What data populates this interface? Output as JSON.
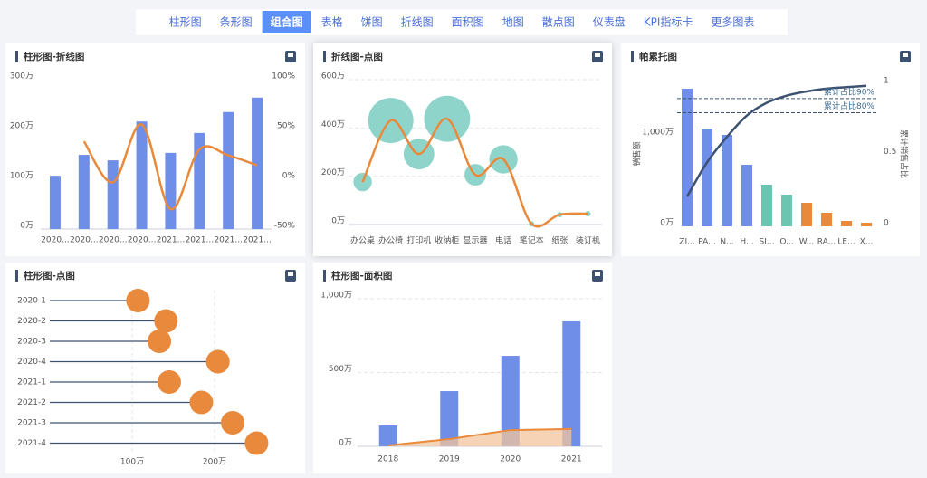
{
  "tabs": [
    {
      "label": "柱形图",
      "active": false
    },
    {
      "label": "条形图",
      "active": false
    },
    {
      "label": "组合图",
      "active": true
    },
    {
      "label": "表格",
      "active": false
    },
    {
      "label": "饼图",
      "active": false
    },
    {
      "label": "折线图",
      "active": false
    },
    {
      "label": "面积图",
      "active": false
    },
    {
      "label": "地图",
      "active": false
    },
    {
      "label": "散点图",
      "active": false
    },
    {
      "label": "仪表盘",
      "active": false
    },
    {
      "label": "KPI指标卡",
      "active": false
    },
    {
      "label": "更多图表",
      "active": false
    }
  ],
  "chart_data": [
    {
      "type": "bar_line",
      "title": "柱形图-折线图",
      "categories": [
        "2020...",
        "2020...",
        "2020...",
        "2020...",
        "2021...",
        "2021...",
        "2021...",
        "2021..."
      ],
      "series": [
        {
          "type": "bar",
          "color": "#6f8ee8",
          "values": [
            107,
            149,
            138,
            216,
            153,
            193,
            235,
            264
          ]
        },
        {
          "type": "line",
          "axis": "y2",
          "color": "#e8893b",
          "values": [
            null,
            38,
            -3,
            55,
            -30,
            30,
            24,
            14
          ]
        }
      ],
      "ylim": [
        0,
        300
      ],
      "yticks": [
        {
          "value": 0,
          "label": "0万"
        },
        {
          "value": 100,
          "label": "100万"
        },
        {
          "value": 200,
          "label": "200万"
        },
        {
          "value": 300,
          "label": "300万"
        }
      ],
      "y2lim": [
        -50,
        100
      ],
      "y2ticks": [
        {
          "value": -50,
          "label": "-50%"
        },
        {
          "value": 0,
          "label": "0%"
        },
        {
          "value": 50,
          "label": "50%"
        },
        {
          "value": 100,
          "label": "100%"
        }
      ],
      "grid": false
    },
    {
      "type": "bubble_line",
      "title": "折线图-点图",
      "categories": [
        "办公桌",
        "办公椅",
        "打印机",
        "收纳柜",
        "显示器",
        "电话",
        "笔记本",
        "纸张",
        "装订机"
      ],
      "values": [
        176,
        431,
        292,
        438,
        206,
        270,
        3,
        41,
        45
      ],
      "bubble_color": "#7bcdc1",
      "line_color": "#e8893b",
      "ylim": [
        0,
        600
      ],
      "yticks": [
        {
          "value": 0,
          "label": "0万"
        },
        {
          "value": 200,
          "label": "200万"
        },
        {
          "value": 400,
          "label": "400万"
        },
        {
          "value": 600,
          "label": "600万"
        }
      ],
      "grid": true
    },
    {
      "type": "pareto",
      "title": "帕累托图",
      "ylabel": "销售额",
      "y2label": "累计销售占比",
      "categories": [
        "ZI...",
        "PA...",
        "N...",
        "H...",
        "SI...",
        "O...",
        "W...",
        "RA...",
        "LE...",
        "X..."
      ],
      "series": [
        {
          "type": "bar",
          "values": [
            1520,
            1080,
            1010,
            680,
            460,
            350,
            260,
            150,
            60,
            40
          ],
          "colors": [
            "#6f8ee8",
            "#6f8ee8",
            "#6f8ee8",
            "#6f8ee8",
            "#6cc5b0",
            "#6cc5b0",
            "#e8893b",
            "#e8893b",
            "#e8893b",
            "#e8893b"
          ]
        },
        {
          "type": "line",
          "axis": "y2",
          "color": "#3d5170",
          "values": [
            0.21,
            0.45,
            0.63,
            0.78,
            0.87,
            0.92,
            0.95,
            0.97,
            0.98,
            0.99
          ]
        }
      ],
      "reference_lines": [
        {
          "value": 0.9,
          "label": "累计占比90%"
        },
        {
          "value": 0.8,
          "label": "累计占比80%"
        }
      ],
      "ylim": [
        0,
        1600
      ],
      "yticks": [
        {
          "value": 0,
          "label": "0万"
        },
        {
          "value": 1000,
          "label": "1,000万"
        }
      ],
      "y2lim": [
        0,
        1.02
      ],
      "y2ticks": [
        0,
        0.5,
        1
      ],
      "grid": false
    },
    {
      "type": "lollipop",
      "title": "柱形图-点图",
      "categories": [
        "2020-1",
        "2020-2",
        "2020-3",
        "2020-4",
        "2021-1",
        "2021-2",
        "2021-3",
        "2021-4"
      ],
      "values": [
        107,
        141,
        133,
        204,
        145,
        184,
        222,
        251
      ],
      "color": "#e8893b",
      "stem_color": "#3d5170",
      "xlim": [
        0,
        300
      ],
      "xticks": [
        {
          "value": 100,
          "label": "100万"
        },
        {
          "value": 200,
          "label": "200万"
        }
      ],
      "grid": true
    },
    {
      "type": "bar_area",
      "title": "柱形图-面积图",
      "categories": [
        "2018",
        "2019",
        "2020",
        "2021"
      ],
      "series": [
        {
          "type": "bar",
          "color": "#6f8ee8",
          "values": [
            141,
            374,
            613,
            847
          ]
        },
        {
          "type": "area",
          "color": "#e8893b",
          "fill": "#f3c49c",
          "values": [
            6,
            49,
            110,
            117
          ]
        }
      ],
      "ylim": [
        0,
        1000
      ],
      "yticks": [
        {
          "value": 0,
          "label": "0万"
        },
        {
          "value": 500,
          "label": "500万"
        },
        {
          "value": 1000,
          "label": "1,000万"
        }
      ],
      "grid": true
    }
  ]
}
